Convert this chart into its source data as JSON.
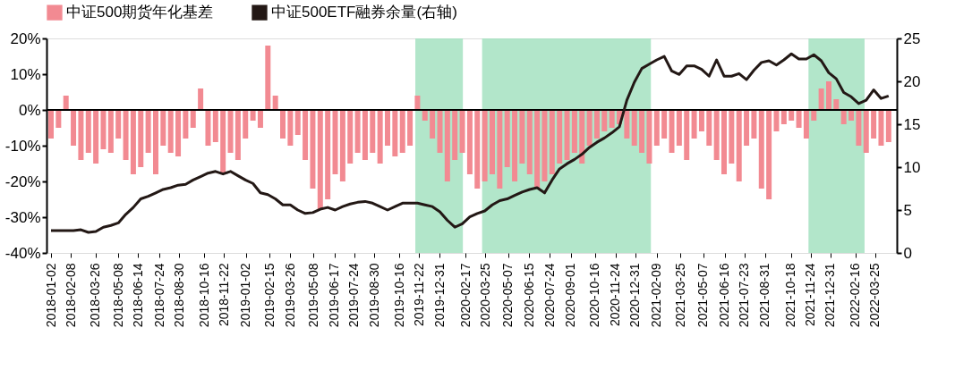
{
  "chart_data": {
    "type": "bar",
    "legend": "top",
    "grid": false,
    "x": [
      "2018-01-02",
      "2018-01-16",
      "2018-01-30",
      "2018-02-13",
      "2018-02-27",
      "2018-03-13",
      "2018-03-27",
      "2018-04-10",
      "2018-04-24",
      "2018-05-08",
      "2018-05-22",
      "2018-06-05",
      "2018-06-19",
      "2018-07-03",
      "2018-07-17",
      "2018-07-31",
      "2018-08-14",
      "2018-08-28",
      "2018-09-11",
      "2018-09-25",
      "2018-10-09",
      "2018-10-23",
      "2018-11-06",
      "2018-11-20",
      "2018-12-04",
      "2018-12-18",
      "2019-01-01",
      "2019-01-15",
      "2019-01-29",
      "2019-02-12",
      "2019-02-26",
      "2019-03-12",
      "2019-03-26",
      "2019-04-09",
      "2019-04-23",
      "2019-05-07",
      "2019-05-21",
      "2019-06-04",
      "2019-06-18",
      "2019-07-02",
      "2019-07-16",
      "2019-07-30",
      "2019-08-13",
      "2019-08-27",
      "2019-09-10",
      "2019-09-24",
      "2019-10-08",
      "2019-10-22",
      "2019-11-05",
      "2019-11-19",
      "2019-12-03",
      "2019-12-17",
      "2019-12-31",
      "2020-01-14",
      "2020-01-28",
      "2020-02-11",
      "2020-02-25",
      "2020-03-10",
      "2020-03-24",
      "2020-04-07",
      "2020-04-21",
      "2020-05-05",
      "2020-05-19",
      "2020-06-02",
      "2020-06-16",
      "2020-06-30",
      "2020-07-14",
      "2020-07-28",
      "2020-08-11",
      "2020-08-25",
      "2020-09-08",
      "2020-09-22",
      "2020-10-06",
      "2020-10-20",
      "2020-11-03",
      "2020-11-17",
      "2020-12-01",
      "2020-12-15",
      "2020-12-29",
      "2021-01-12",
      "2021-01-26",
      "2021-02-09",
      "2021-02-23",
      "2021-03-09",
      "2021-03-23",
      "2021-04-06",
      "2021-04-20",
      "2021-05-04",
      "2021-05-18",
      "2021-06-01",
      "2021-06-15",
      "2021-06-29",
      "2021-07-13",
      "2021-07-27",
      "2021-08-10",
      "2021-08-24",
      "2021-09-07",
      "2021-09-21",
      "2021-10-05",
      "2021-10-19",
      "2021-11-02",
      "2021-11-16",
      "2021-11-30",
      "2021-12-14",
      "2021-12-28",
      "2022-01-11",
      "2022-01-25",
      "2022-02-08",
      "2022-02-22",
      "2022-03-08",
      "2022-03-22",
      "2022-04-05",
      "2022-04-19"
    ],
    "xlim": [
      "2018-01-02",
      "2022-04-26"
    ],
    "xticks": [
      "2018-01-02",
      "2018-02-08",
      "2018-03-26",
      "2018-05-08",
      "2018-06-14",
      "2018-07-24",
      "2018-08-30",
      "2018-10-16",
      "2018-11-22",
      "2019-01-02",
      "2019-02-15",
      "2019-03-26",
      "2019-05-08",
      "2019-06-17",
      "2019-07-24",
      "2019-08-30",
      "2019-10-16",
      "2019-11-22",
      "2019-12-31",
      "2020-02-17",
      "2020-03-25",
      "2020-05-07",
      "2020-06-15",
      "2020-07-24",
      "2020-09-01",
      "2020-10-16",
      "2020-11-24",
      "2020-12-31",
      "2021-02-09",
      "2021-03-25",
      "2021-05-07",
      "2021-06-16",
      "2021-07-23",
      "2021-08-31",
      "2021-10-18",
      "2021-11-24",
      "2021-12-31",
      "2022-02-16",
      "2022-03-25"
    ],
    "ylim": [
      -40,
      20
    ],
    "yticks": [
      {
        "value": -40,
        "label": "-40%"
      },
      {
        "value": -30,
        "label": "-30%"
      },
      {
        "value": -20,
        "label": "-20%"
      },
      {
        "value": -10,
        "label": "-10%"
      },
      {
        "value": 0,
        "label": "0%"
      },
      {
        "value": 10,
        "label": "10%"
      },
      {
        "value": 20,
        "label": "20%"
      }
    ],
    "y2lim": [
      0,
      25
    ],
    "y2ticks": [
      0,
      5,
      10,
      15,
      20,
      25
    ],
    "ref_lines": [
      {
        "axis": "y",
        "value": 0,
        "color": "#000000"
      }
    ],
    "bands": [
      {
        "axis": "x",
        "from": "2019-11-15",
        "to": "2020-02-12",
        "color": "#9fe0bd"
      },
      {
        "axis": "x",
        "from": "2020-03-19",
        "to": "2021-01-29",
        "color": "#9fe0bd"
      },
      {
        "axis": "x",
        "from": "2021-11-20",
        "to": "2022-03-05",
        "color": "#9fe0bd"
      }
    ],
    "series": [
      {
        "name": "中证500期货年化基差",
        "color": "#f28a92",
        "values": [
          -8,
          -5,
          4,
          -10,
          -14,
          -12,
          -15,
          -11,
          -12,
          -8,
          -14,
          -18,
          -16,
          -12,
          -18,
          -10,
          -12,
          -13,
          -8,
          -5,
          6,
          -10,
          -9,
          -18,
          -12,
          -14,
          -8,
          -3,
          -5,
          18,
          4,
          -8,
          -10,
          -7,
          -14,
          -22,
          -28,
          -25,
          -18,
          -20,
          -15,
          -12,
          -14,
          -12,
          -15,
          -10,
          -13,
          -12,
          -10,
          4,
          -3,
          -8,
          -12,
          -20,
          -14,
          -12,
          -18,
          -22,
          -20,
          -18,
          -22,
          -16,
          -20,
          -15,
          -18,
          -22,
          -20,
          -18,
          -15,
          -14,
          -12,
          -15,
          -10,
          -8,
          -6,
          -5,
          -4,
          -8,
          -10,
          -12,
          -15,
          -10,
          -8,
          -12,
          -10,
          -14,
          -8,
          -6,
          -10,
          -14,
          -18,
          -15,
          -20,
          -10,
          -8,
          -22,
          -25,
          -6,
          -4,
          -3,
          -5,
          -8,
          -3,
          6,
          8,
          3,
          -4,
          -3,
          -10,
          -12,
          -8,
          -10,
          -9
        ]
      },
      {
        "name": "中证500ETF融券余量(右轴)",
        "type": "line",
        "axis": "y2",
        "color": "#231815",
        "values": [
          2.6,
          2.6,
          2.6,
          2.6,
          2.7,
          2.4,
          2.5,
          3.0,
          3.2,
          3.5,
          4.5,
          5.3,
          6.3,
          6.6,
          7.0,
          7.4,
          7.6,
          7.9,
          8.0,
          8.5,
          8.9,
          9.3,
          9.5,
          9.2,
          9.5,
          9.0,
          8.5,
          8.1,
          7.0,
          6.8,
          6.3,
          5.6,
          5.6,
          5.0,
          4.6,
          4.7,
          5.1,
          5.3,
          5.0,
          5.4,
          5.7,
          5.9,
          6.0,
          5.8,
          5.4,
          5.0,
          5.4,
          5.8,
          5.8,
          5.8,
          5.6,
          5.4,
          4.8,
          3.8,
          3.0,
          3.4,
          4.2,
          4.6,
          4.9,
          5.6,
          6.1,
          6.3,
          6.7,
          7.1,
          7.4,
          7.6,
          7.0,
          8.5,
          9.8,
          10.4,
          10.9,
          11.5,
          12.3,
          12.9,
          13.4,
          14.0,
          14.7,
          17.8,
          19.9,
          21.5,
          22.0,
          22.5,
          22.9,
          21.2,
          20.8,
          21.8,
          21.8,
          21.4,
          20.6,
          22.5,
          20.6,
          20.6,
          20.9,
          20.2,
          21.3,
          22.2,
          22.4,
          21.9,
          22.5,
          23.2,
          22.6,
          22.6,
          23.1,
          22.4,
          21.0,
          20.3,
          18.7,
          18.2,
          17.4,
          17.8,
          19.0,
          18.0,
          18.3
        ]
      }
    ]
  }
}
